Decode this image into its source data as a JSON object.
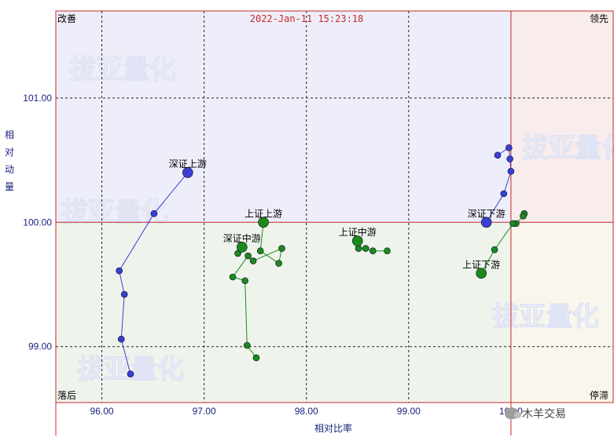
{
  "timestamp": "2022-Jan-11 15:23:18",
  "quadrants": {
    "top_left": "改善",
    "top_right": "领先",
    "bottom_left": "落后",
    "bottom_right": "停滞"
  },
  "quadrant_colors": {
    "top_left": "#eeeefa",
    "top_right": "#f9ecec",
    "bottom_left": "#eef4ec",
    "bottom_right": "#f9f7ed",
    "top_left_text": "#1a237e",
    "top_right_text": "#c62828",
    "bottom_left_text": "#1b7a1b",
    "bottom_right_text": "#c8a400"
  },
  "watermark": "拔亚量化",
  "credit": "木羊交易",
  "chart_data": {
    "type": "scatter",
    "xlabel": "相对比率",
    "ylabel": "相对动量",
    "x_ticks": [
      "96.00",
      "97.00",
      "98.00",
      "99.00",
      "100.0"
    ],
    "y_ticks": [
      "99.00",
      "100.00",
      "101.00"
    ],
    "xlim": [
      95.55,
      101.0
    ],
    "ylim": [
      98.55,
      101.7
    ],
    "center": [
      100.0,
      100.0
    ],
    "grid": true,
    "series": [
      {
        "name": "深证上游",
        "color": "#3a3fd4",
        "points": [
          [
            96.28,
            98.78
          ],
          [
            96.19,
            99.06
          ],
          [
            96.22,
            99.42
          ],
          [
            96.17,
            99.61
          ],
          [
            96.51,
            100.07
          ],
          [
            96.84,
            100.4
          ]
        ]
      },
      {
        "name": "上证上游",
        "color": "#1b8a1b",
        "points": [
          [
            97.51,
            98.91
          ],
          [
            97.42,
            99.01
          ],
          [
            97.4,
            99.53
          ],
          [
            97.28,
            99.56
          ],
          [
            97.43,
            99.73
          ],
          [
            97.48,
            99.69
          ],
          [
            97.76,
            99.79
          ],
          [
            97.73,
            99.67
          ],
          [
            97.55,
            99.77
          ],
          [
            97.58,
            100.0
          ]
        ]
      },
      {
        "name": "深证中游",
        "color": "#1b8a1b",
        "points": [
          [
            97.33,
            99.75
          ],
          [
            97.37,
            99.8
          ]
        ]
      },
      {
        "name": "上证中游",
        "color": "#1b8a1b",
        "points": [
          [
            98.79,
            99.77
          ],
          [
            98.65,
            99.77
          ],
          [
            98.58,
            99.79
          ],
          [
            98.51,
            99.79
          ],
          [
            98.5,
            99.85
          ]
        ]
      },
      {
        "name": "深证下游",
        "color": "#3a3fd4",
        "points": [
          [
            99.87,
            100.54
          ],
          [
            99.98,
            100.6
          ],
          [
            99.99,
            100.51
          ],
          [
            100.0,
            100.41
          ],
          [
            99.93,
            100.23
          ],
          [
            99.76,
            100.0
          ]
        ]
      },
      {
        "name": "上证下游",
        "color": "#1b8a1b",
        "points": [
          [
            100.13,
            100.07
          ],
          [
            100.12,
            100.05
          ],
          [
            100.05,
            99.99
          ],
          [
            100.02,
            99.99
          ],
          [
            99.84,
            99.78
          ],
          [
            99.71,
            99.59
          ]
        ]
      }
    ]
  }
}
